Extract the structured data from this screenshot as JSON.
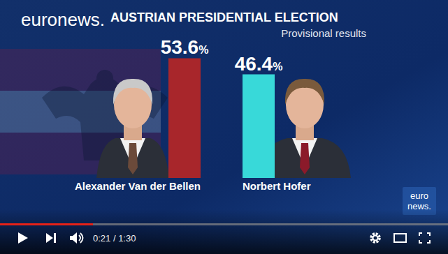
{
  "chart_data": {
    "type": "bar",
    "title": "AUSTRIAN PRESIDENTIAL ELECTION",
    "subtitle": "Provisional results",
    "categories": [
      "Alexander Van der Bellen",
      "Norbert Hofer"
    ],
    "values": [
      53.6,
      46.4
    ],
    "value_labels": [
      "53.6%",
      "46.4%"
    ],
    "colors": [
      "#a8262b",
      "#38d9d9"
    ],
    "ylim": [
      0,
      60
    ],
    "data_labels": true,
    "tick_labels": "x"
  },
  "logo": "euronews.",
  "corner_logo": [
    "euro",
    "news."
  ],
  "player": {
    "time": "0:21 / 1:30"
  }
}
